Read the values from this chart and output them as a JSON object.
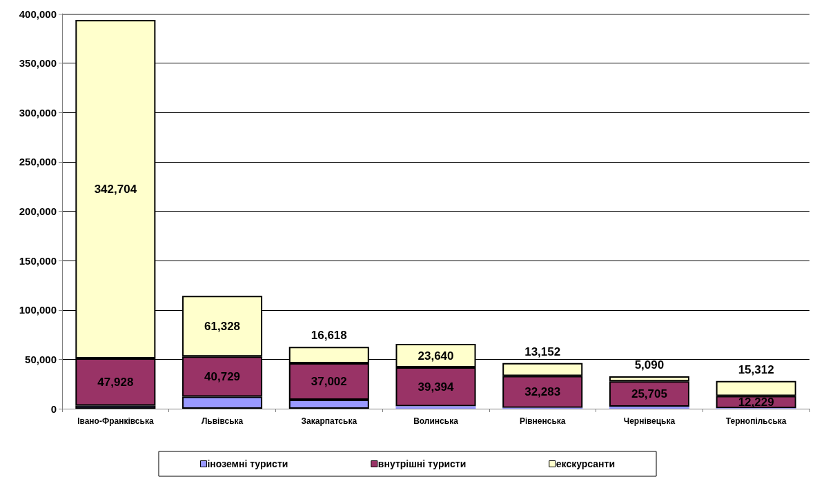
{
  "chart_data": {
    "type": "bar",
    "stacked": true,
    "categories": [
      "Івано-Франківська",
      "Львівська",
      "Закарпатська",
      "Волинська",
      "Рівненська",
      "Чернівецька",
      "Тернопільська"
    ],
    "series": [
      {
        "name": "іноземні туристи",
        "color": "#9999ff",
        "values": [
          3100,
          12200,
          9000,
          2500,
          900,
          2100,
          600
        ]
      },
      {
        "name": "внутрішні туристи",
        "color": "#993366",
        "values": [
          47928,
          40729,
          37002,
          39394,
          32283,
          25705,
          12229
        ],
        "value_labels": [
          "47,928",
          "40,729",
          "37,002",
          "39,394",
          "32,283",
          "25,705",
          "12,229"
        ]
      },
      {
        "name": "екскурсанти",
        "color": "#ffffcc",
        "values": [
          342704,
          61328,
          16618,
          23640,
          13152,
          5090,
          15312
        ],
        "value_labels": [
          "342,704",
          "61,328",
          "16,618",
          "23,640",
          "13,152",
          "5,090",
          "15,312"
        ]
      }
    ],
    "ylim": [
      0,
      400000
    ],
    "yticks": [
      0,
      {
        "value": 50000,
        "label": "50,000"
      },
      {
        "value": 100000,
        "label": "100,000"
      },
      {
        "value": 150000,
        "label": "150,000"
      },
      {
        "value": 200000,
        "label": "200,000"
      },
      {
        "value": 250000,
        "label": "250,000"
      },
      {
        "value": 300000,
        "label": "300,000"
      },
      {
        "value": 350000,
        "label": "350,000"
      },
      {
        "value": 400000,
        "label": "400,000"
      }
    ],
    "grid": "y",
    "legend": "bottom"
  }
}
